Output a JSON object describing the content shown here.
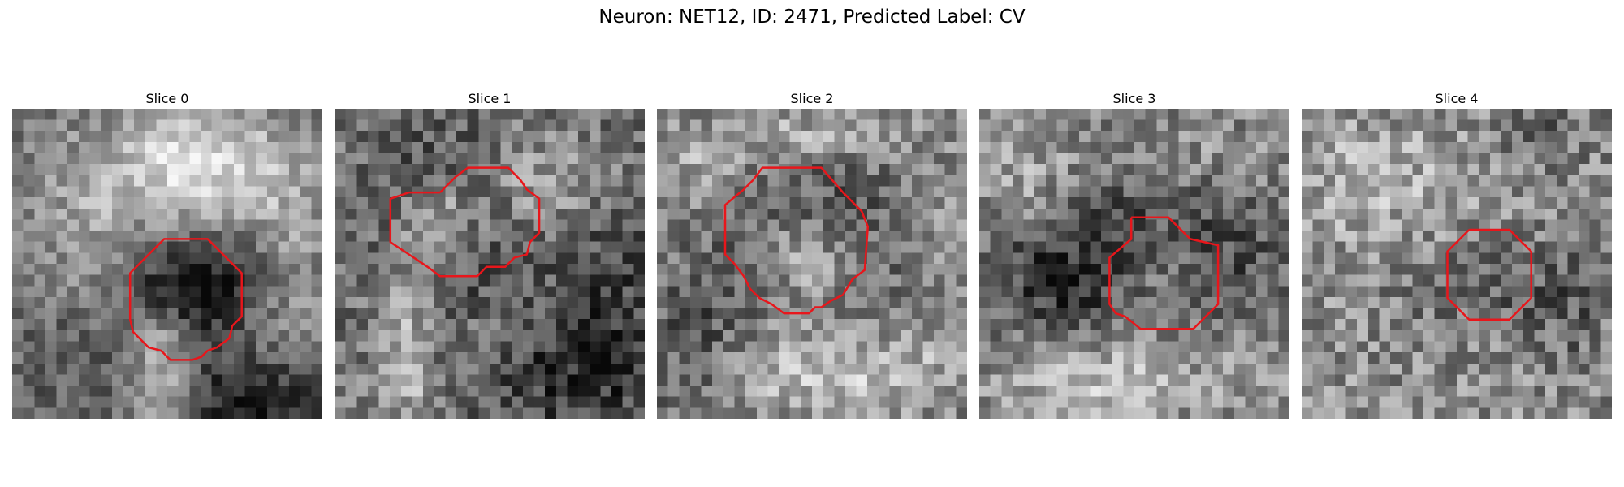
{
  "figure": {
    "suptitle": "Neuron: NET12, ID: 2471, Predicted Label: CV"
  },
  "panels": [
    {
      "title": "Slice 0"
    },
    {
      "title": "Slice 1"
    },
    {
      "title": "Slice 2"
    },
    {
      "title": "Slice 3"
    },
    {
      "title": "Slice 4"
    }
  ],
  "colors": {
    "contour": "#e8161b",
    "background": "#ffffff"
  }
}
